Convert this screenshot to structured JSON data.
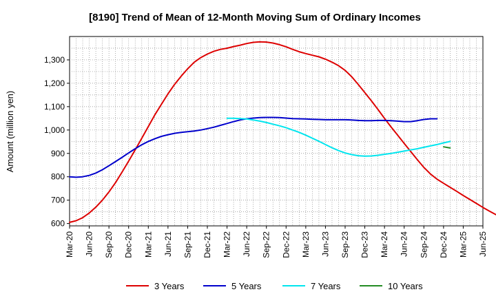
{
  "chart_data": {
    "type": "line",
    "title": "[8190]  Trend of Mean of 12-Month Moving Sum of Ordinary Incomes",
    "xlabel": "",
    "ylabel": "Amount (million yen)",
    "ylim": [
      590,
      1400
    ],
    "yticks": [
      600,
      700,
      800,
      900,
      1000,
      1100,
      1200,
      1300
    ],
    "ytick_labels": [
      "600",
      "700",
      "800",
      "900",
      "1,000",
      "1,100",
      "1,200",
      "1,300"
    ],
    "xticks": [
      "Mar-20",
      "Jun-20",
      "Sep-20",
      "Dec-20",
      "Mar-21",
      "Jun-21",
      "Sep-21",
      "Dec-21",
      "Mar-22",
      "Jun-22",
      "Sep-22",
      "Dec-22",
      "Mar-23",
      "Jun-23",
      "Sep-23",
      "Dec-23",
      "Mar-24",
      "Jun-24",
      "Sep-24",
      "Dec-24",
      "Mar-25",
      "Jun-25"
    ],
    "x_unit": "month index from Mar-20",
    "series": [
      {
        "name": "3 Years",
        "color": "#dd0000",
        "points": [
          [
            0,
            605
          ],
          [
            1,
            612
          ],
          [
            2,
            625
          ],
          [
            3,
            645
          ],
          [
            4,
            670
          ],
          [
            5,
            700
          ],
          [
            6,
            735
          ],
          [
            7,
            775
          ],
          [
            8,
            820
          ],
          [
            9,
            867
          ],
          [
            10,
            915
          ],
          [
            11,
            965
          ],
          [
            12,
            1015
          ],
          [
            13,
            1065
          ],
          [
            14,
            1110
          ],
          [
            15,
            1155
          ],
          [
            16,
            1195
          ],
          [
            17,
            1230
          ],
          [
            18,
            1262
          ],
          [
            19,
            1290
          ],
          [
            20,
            1310
          ],
          [
            21,
            1325
          ],
          [
            22,
            1337
          ],
          [
            23,
            1345
          ],
          [
            24,
            1350
          ],
          [
            25,
            1357
          ],
          [
            26,
            1363
          ],
          [
            27,
            1370
          ],
          [
            28,
            1375
          ],
          [
            29,
            1377
          ],
          [
            30,
            1376
          ],
          [
            31,
            1372
          ],
          [
            32,
            1365
          ],
          [
            33,
            1356
          ],
          [
            34,
            1345
          ],
          [
            35,
            1335
          ],
          [
            36,
            1327
          ],
          [
            37,
            1320
          ],
          [
            38,
            1313
          ],
          [
            39,
            1303
          ],
          [
            40,
            1290
          ],
          [
            41,
            1275
          ],
          [
            42,
            1255
          ],
          [
            43,
            1228
          ],
          [
            44,
            1195
          ],
          [
            45,
            1160
          ],
          [
            46,
            1125
          ],
          [
            47,
            1088
          ],
          [
            48,
            1050
          ],
          [
            49,
            1013
          ],
          [
            50,
            978
          ],
          [
            51,
            943
          ],
          [
            52,
            908
          ],
          [
            53,
            873
          ],
          [
            54,
            840
          ],
          [
            55,
            812
          ],
          [
            56,
            790
          ],
          [
            57,
            772
          ],
          [
            58,
            755
          ],
          [
            59,
            738
          ],
          [
            60,
            720
          ],
          [
            61,
            703
          ],
          [
            62,
            686
          ],
          [
            63,
            669
          ],
          [
            64,
            653
          ],
          [
            65,
            638
          ],
          [
            66,
            625
          ]
        ]
      },
      {
        "name": "5 Years",
        "color": "#0000cc",
        "points": [
          [
            0,
            800
          ],
          [
            1,
            798
          ],
          [
            2,
            800
          ],
          [
            3,
            806
          ],
          [
            4,
            816
          ],
          [
            5,
            830
          ],
          [
            6,
            847
          ],
          [
            7,
            865
          ],
          [
            8,
            883
          ],
          [
            9,
            902
          ],
          [
            10,
            920
          ],
          [
            11,
            937
          ],
          [
            12,
            951
          ],
          [
            13,
            963
          ],
          [
            14,
            973
          ],
          [
            15,
            980
          ],
          [
            16,
            986
          ],
          [
            17,
            990
          ],
          [
            18,
            993
          ],
          [
            19,
            996
          ],
          [
            20,
            1000
          ],
          [
            21,
            1006
          ],
          [
            22,
            1012
          ],
          [
            23,
            1020
          ],
          [
            24,
            1028
          ],
          [
            25,
            1036
          ],
          [
            26,
            1043
          ],
          [
            27,
            1048
          ],
          [
            28,
            1051
          ],
          [
            29,
            1053
          ],
          [
            30,
            1054
          ],
          [
            31,
            1054
          ],
          [
            32,
            1053
          ],
          [
            33,
            1051
          ],
          [
            34,
            1049
          ],
          [
            35,
            1048
          ],
          [
            36,
            1047
          ],
          [
            37,
            1046
          ],
          [
            38,
            1045
          ],
          [
            39,
            1044
          ],
          [
            40,
            1044
          ],
          [
            41,
            1044
          ],
          [
            42,
            1044
          ],
          [
            43,
            1043
          ],
          [
            44,
            1041
          ],
          [
            45,
            1040
          ],
          [
            46,
            1040
          ],
          [
            47,
            1041
          ],
          [
            48,
            1041
          ],
          [
            49,
            1040
          ],
          [
            50,
            1038
          ],
          [
            51,
            1036
          ],
          [
            52,
            1036
          ],
          [
            53,
            1040
          ],
          [
            54,
            1045
          ],
          [
            55,
            1048
          ],
          [
            56,
            1048
          ]
        ]
      },
      {
        "name": "7 Years",
        "color": "#00e5ee",
        "points": [
          [
            24,
            1050
          ],
          [
            25,
            1050
          ],
          [
            26,
            1049
          ],
          [
            27,
            1047
          ],
          [
            28,
            1043
          ],
          [
            29,
            1038
          ],
          [
            30,
            1032
          ],
          [
            31,
            1025
          ],
          [
            32,
            1018
          ],
          [
            33,
            1010
          ],
          [
            34,
            1000
          ],
          [
            35,
            990
          ],
          [
            36,
            978
          ],
          [
            37,
            965
          ],
          [
            38,
            952
          ],
          [
            39,
            938
          ],
          [
            40,
            924
          ],
          [
            41,
            912
          ],
          [
            42,
            902
          ],
          [
            43,
            895
          ],
          [
            44,
            890
          ],
          [
            45,
            888
          ],
          [
            46,
            889
          ],
          [
            47,
            892
          ],
          [
            48,
            896
          ],
          [
            49,
            900
          ],
          [
            50,
            905
          ],
          [
            51,
            910
          ],
          [
            52,
            915
          ],
          [
            53,
            920
          ],
          [
            54,
            926
          ],
          [
            55,
            932
          ],
          [
            56,
            938
          ],
          [
            57,
            945
          ],
          [
            58,
            951
          ]
        ]
      },
      {
        "name": "10 Years",
        "color": "#228b22",
        "points": [
          [
            57,
            928
          ],
          [
            58,
            923
          ]
        ]
      }
    ],
    "legend_position": "bottom",
    "grid": true
  }
}
